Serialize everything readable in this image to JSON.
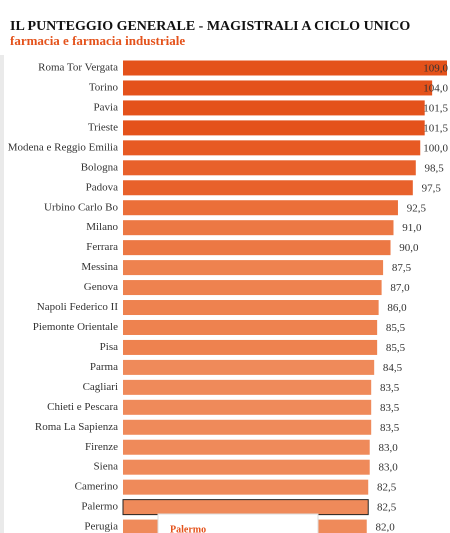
{
  "chart_data": {
    "type": "bar",
    "orientation": "horizontal",
    "title": "IL PUNTEGGIO GENERALE - MAGISTRALI A CICLO UNICO",
    "subtitle": "farmacia e farmacia industriale",
    "categories": [
      "Roma Tor Vergata",
      "Torino",
      "Pavia",
      "Trieste",
      "Modena e Reggio Emilia",
      "Bologna",
      "Padova",
      "Urbino Carlo Bo",
      "Milano",
      "Ferrara",
      "Messina",
      "Genova",
      "Napoli Federico II",
      "Piemonte Orientale",
      "Pisa",
      "Parma",
      "Cagliari",
      "Chieti e Pescara",
      "Roma La Sapienza",
      "Firenze",
      "Siena",
      "Camerino",
      "Palermo",
      "Perugia"
    ],
    "values": [
      109.0,
      104.0,
      101.5,
      101.5,
      100.0,
      98.5,
      97.5,
      92.5,
      91.0,
      90.0,
      87.5,
      87.0,
      86.0,
      85.5,
      85.5,
      84.5,
      83.5,
      83.5,
      83.5,
      83.0,
      83.0,
      82.5,
      82.5,
      82.0
    ],
    "value_labels": [
      "109,0",
      "104,0",
      "101,5",
      "101,5",
      "100,0",
      "98,5",
      "97,5",
      "92,5",
      "91,0",
      "90,0",
      "87,5",
      "87,0",
      "86,0",
      "85,5",
      "85,5",
      "84,5",
      "83,5",
      "83,5",
      "83,5",
      "83,0",
      "83,0",
      "82,5",
      "82,5",
      "82,0"
    ],
    "colors": [
      "#e4521b",
      "#e4521b",
      "#e4521b",
      "#e4521b",
      "#e75a23",
      "#e8612b",
      "#e8612b",
      "#eb6f39",
      "#ec7844",
      "#ec7844",
      "#ee824f",
      "#ee824f",
      "#ee824f",
      "#ee824f",
      "#ee824f",
      "#ef8a5a",
      "#ef8a5a",
      "#ef8a5a",
      "#ef8a5a",
      "#ef8a5a",
      "#ef8a5a",
      "#ef8a5a",
      "#ef8a5a",
      "#ef8a5a"
    ],
    "highlight": 22,
    "tooltip": {
      "title": "Palermo"
    }
  }
}
